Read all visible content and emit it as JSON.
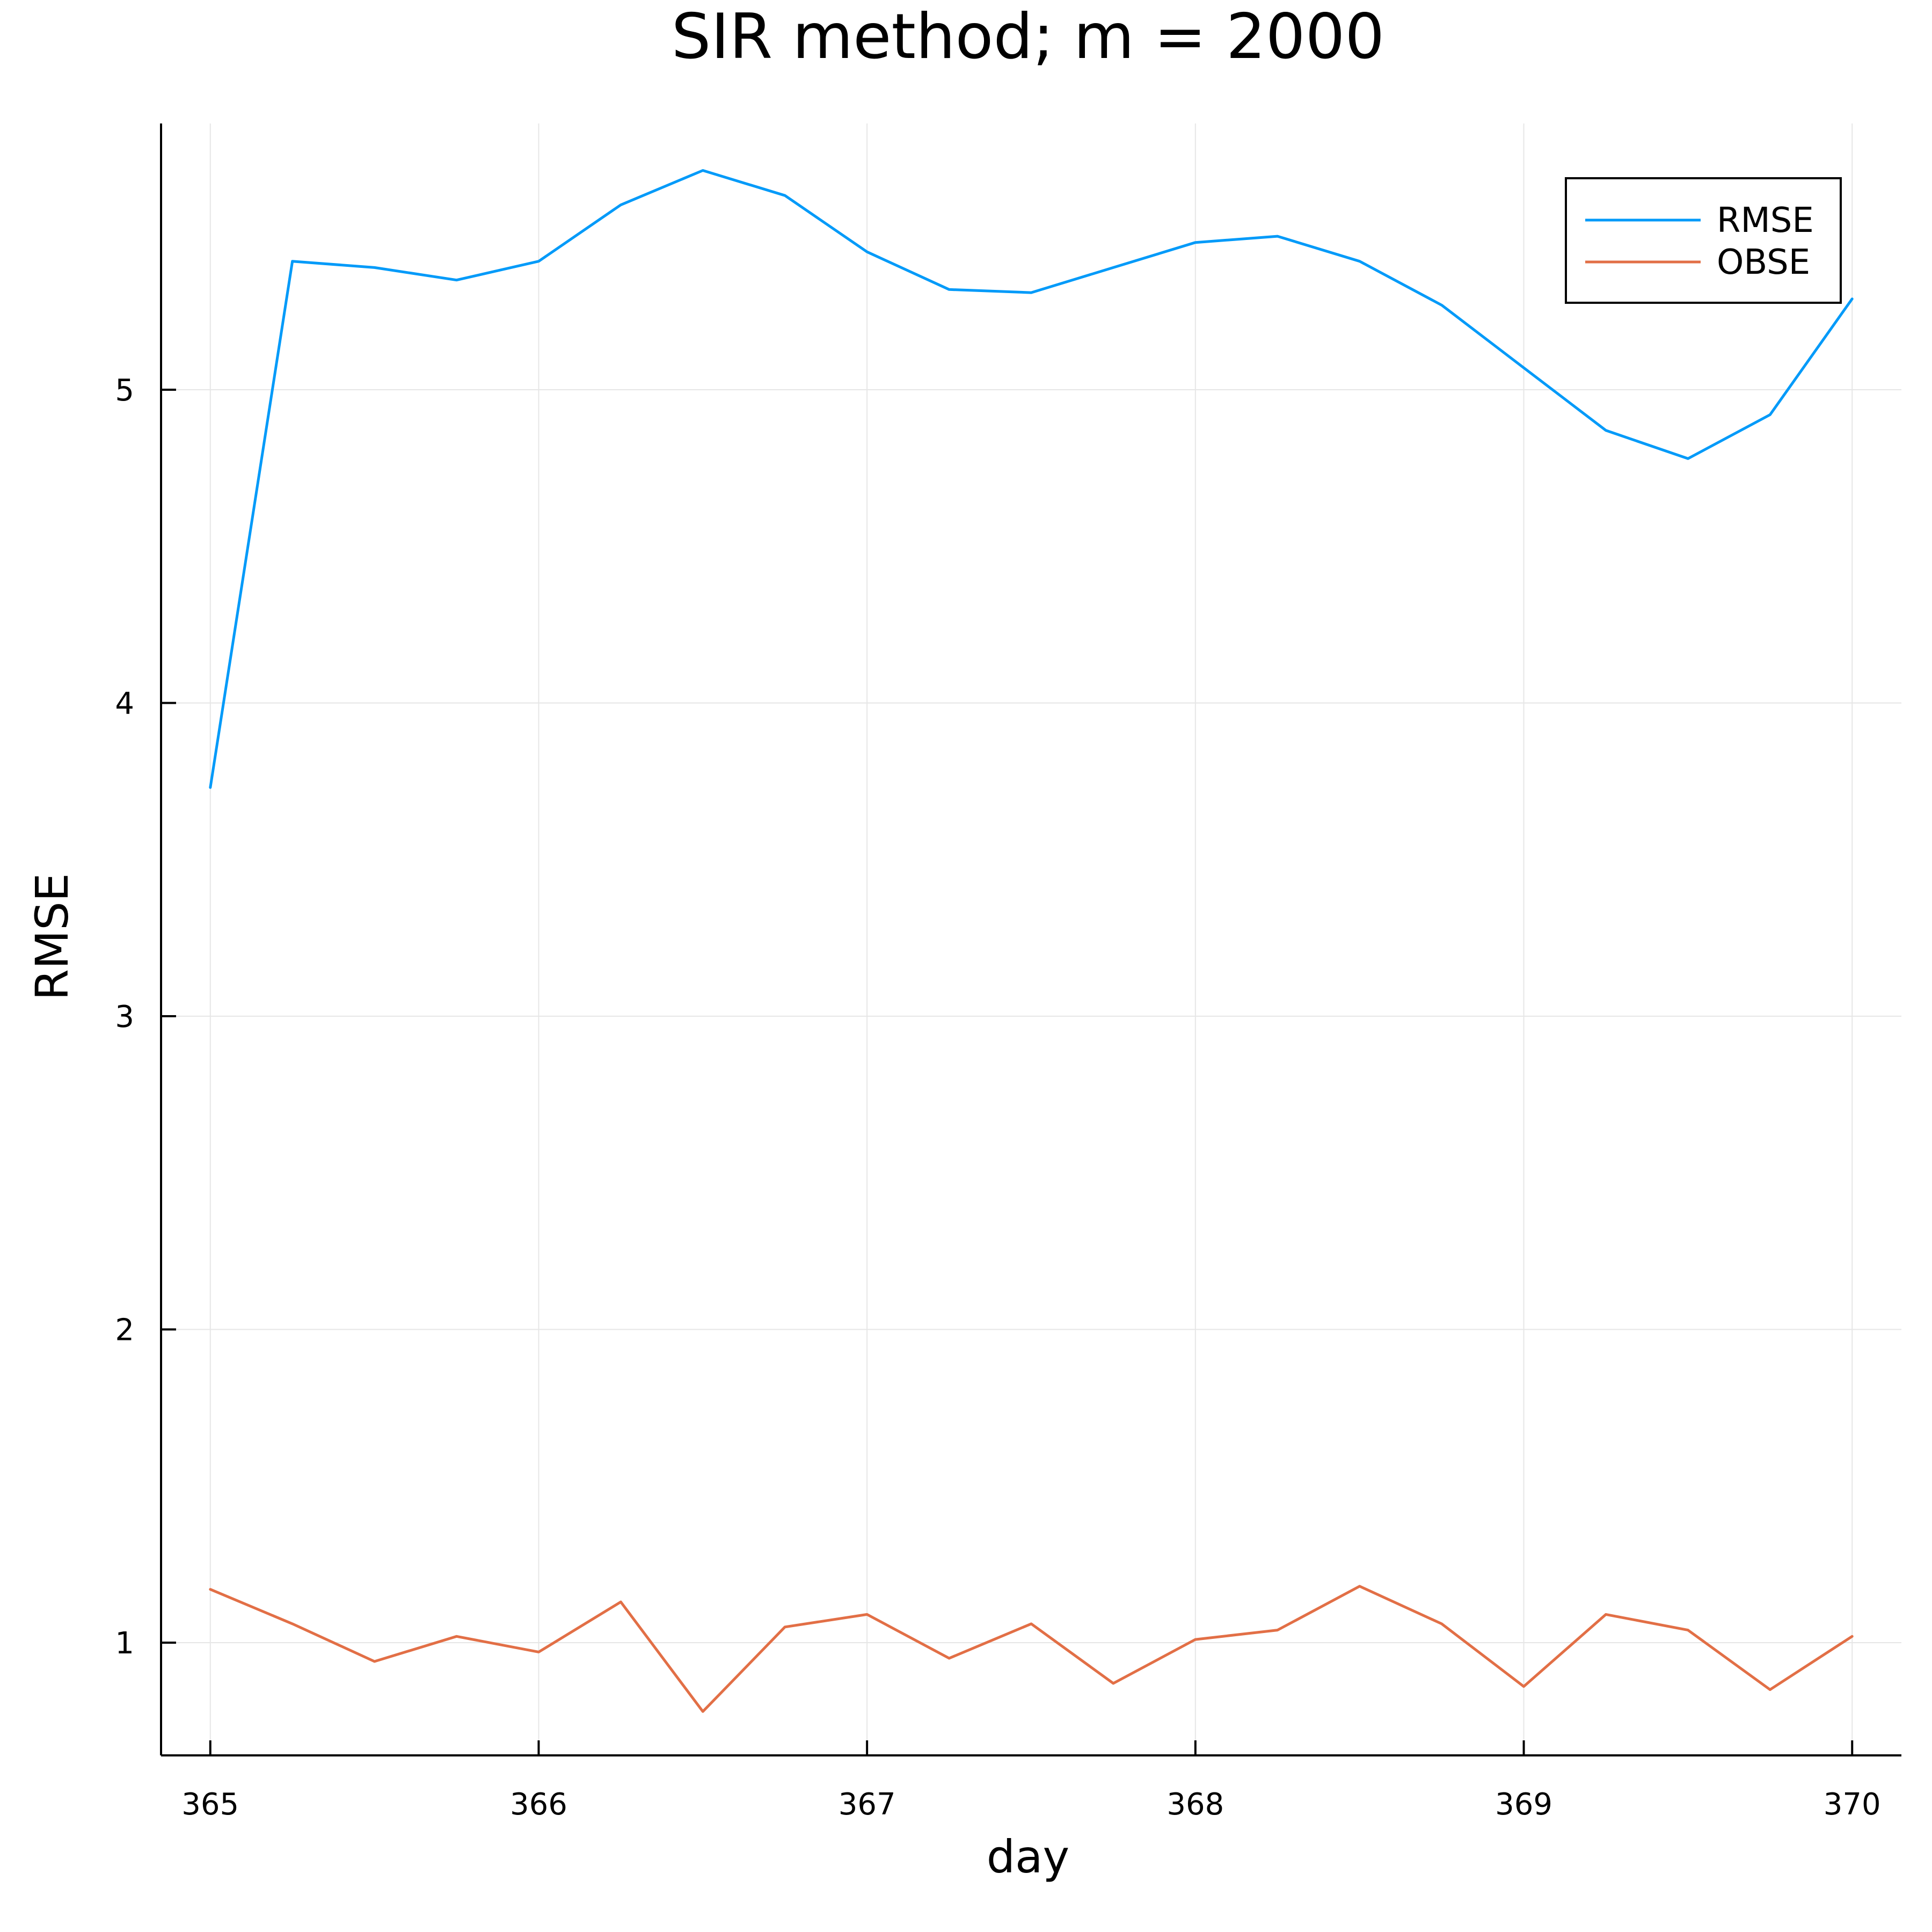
{
  "chart_data": {
    "type": "line",
    "title": "SIR method; m = 2000",
    "xlabel": "day",
    "ylabel": "RMSE",
    "xlim": [
      364.85,
      370.15
    ],
    "ylim": [
      0.64,
      5.85
    ],
    "x_ticks": [
      365,
      366,
      367,
      368,
      369,
      370
    ],
    "y_ticks": [
      1,
      2,
      3,
      4,
      5
    ],
    "grid": true,
    "legend_position": "top-right",
    "x": [
      365.0,
      365.25,
      365.5,
      365.75,
      366.0,
      366.25,
      366.5,
      366.75,
      367.0,
      367.25,
      367.5,
      367.75,
      368.0,
      368.25,
      368.5,
      368.75,
      369.0,
      369.25,
      369.5,
      369.75,
      370.0
    ],
    "series": [
      {
        "name": "RMSE",
        "color": "#009af9",
        "values": [
          3.73,
          5.41,
          5.39,
          5.35,
          5.41,
          5.59,
          5.7,
          5.62,
          5.44,
          5.32,
          5.31,
          5.39,
          5.47,
          5.49,
          5.41,
          5.27,
          5.07,
          4.87,
          4.78,
          4.92,
          5.29
        ]
      },
      {
        "name": "OBSE",
        "color": "#e26f46",
        "values": [
          1.17,
          1.06,
          0.94,
          1.02,
          0.97,
          1.13,
          0.78,
          1.05,
          1.09,
          0.95,
          1.06,
          0.87,
          1.01,
          1.04,
          1.18,
          1.06,
          0.86,
          1.09,
          1.04,
          0.85,
          1.02
        ]
      }
    ]
  }
}
